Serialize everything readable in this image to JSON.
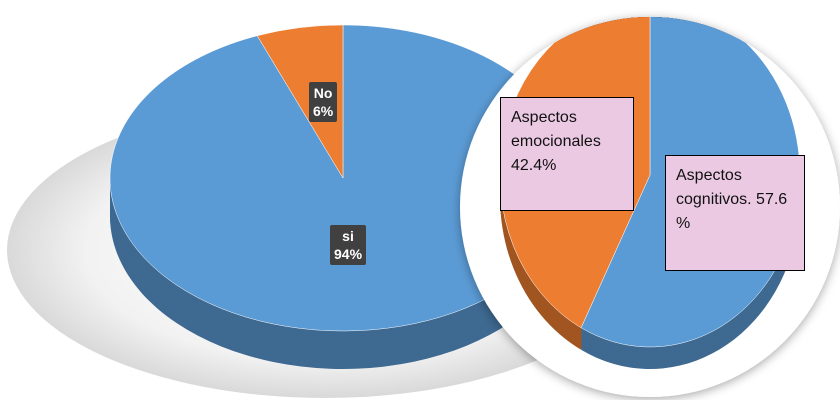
{
  "chart_data": [
    {
      "type": "pie",
      "categories": [
        "si",
        "No"
      ],
      "values": [
        94,
        6
      ],
      "value_labels": [
        "94%",
        "6%"
      ],
      "colors": [
        "#5b9bd5",
        "#ed7d31"
      ]
    },
    {
      "type": "pie",
      "categories": [
        "Aspectos cognitivos.",
        "Aspectos emocionales"
      ],
      "values": [
        57.6,
        42.4
      ],
      "value_labels": [
        "57.6 %",
        "42.4%"
      ],
      "colors": [
        "#5b9bd5",
        "#ed7d31"
      ]
    }
  ]
}
